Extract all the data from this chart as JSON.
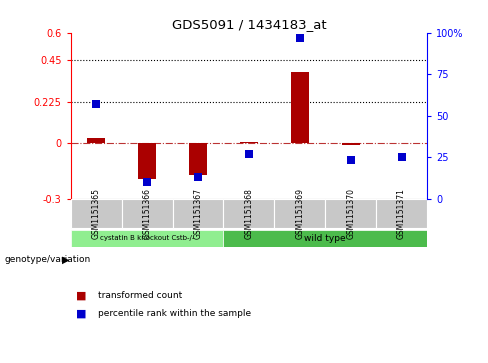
{
  "title": "GDS5091 / 1434183_at",
  "samples": [
    "GSM1151365",
    "GSM1151366",
    "GSM1151367",
    "GSM1151368",
    "GSM1151369",
    "GSM1151370",
    "GSM1151371"
  ],
  "transformed_count": [
    0.028,
    -0.195,
    -0.17,
    0.008,
    0.385,
    -0.012,
    0.003
  ],
  "percentile_rank": [
    57,
    10,
    13,
    27,
    97,
    23,
    25
  ],
  "ylim_left": [
    -0.3,
    0.6
  ],
  "ylim_right": [
    0,
    100
  ],
  "yticks_left": [
    -0.3,
    0,
    0.225,
    0.45,
    0.6
  ],
  "yticks_right": [
    0,
    25,
    50,
    75,
    100
  ],
  "ytick_labels_left": [
    "-0.3",
    "0",
    "0.225",
    "0.45",
    "0.6"
  ],
  "ytick_labels_right": [
    "0",
    "25",
    "50",
    "75",
    "100%"
  ],
  "hlines": [
    0.225,
    0.45
  ],
  "dashed_hline": 0.0,
  "bar_color": "#AA0000",
  "dot_color": "#0000CC",
  "background_color": "#ffffff",
  "plot_bg_color": "#ffffff",
  "group1_label": "cystatin B knockout Cstb-/-",
  "group2_label": "wild type",
  "group1_color": "#90EE90",
  "group2_color": "#4CBB4C",
  "genotype_label": "genotype/variation",
  "legend_items": [
    "transformed count",
    "percentile rank within the sample"
  ],
  "legend_colors": [
    "#AA0000",
    "#0000CC"
  ],
  "bar_width": 0.35,
  "dot_size": 35,
  "left_spine_color": "red",
  "right_spine_color": "blue"
}
